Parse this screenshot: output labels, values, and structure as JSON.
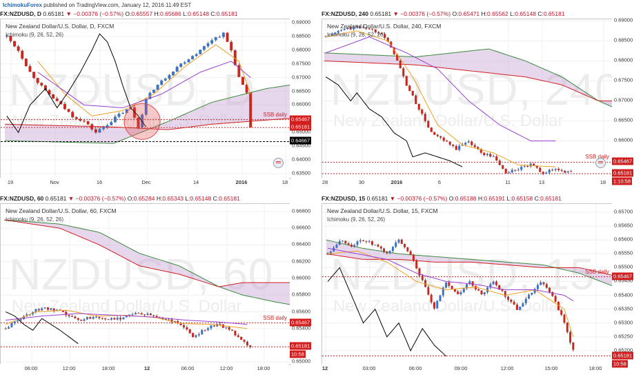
{
  "publish": {
    "author": "IchimokuForex",
    "text": "published on TradingView.com, January 12, 2016 11:49 EST"
  },
  "colors": {
    "up": "#3b73c9",
    "down": "#c8281e",
    "cloud": "#c8a6d6",
    "span_a": "#3a8a3a",
    "span_b": "#d01e1e",
    "tenkan": "#f0a020",
    "kijun": "#9b3fd0",
    "chikou": "#000000",
    "ssb": "#d21e1e"
  },
  "panels": [
    {
      "id": "daily",
      "header": {
        "symbol": "FX:NZDUSD, D",
        "price": "0.65181",
        "change": "▼ −0.00376 (−0.57%)",
        "o_label": "O:",
        "o": "0.65557",
        "h_label": "H:",
        "h": "0.65686",
        "l_label": "L:",
        "l": "0.65148",
        "c_label": "C:",
        "c": "0.65181"
      },
      "instrument": "New Zealand Dollar/U.S. Dollar, D, FXCM",
      "indicator": "Ichimoku (9, 26, 52, 26)",
      "watermark": "NZDUSD, D",
      "watermark_sub": "New Zealand Dollar/U.S. Dollar",
      "ssb_label": "SSB daily",
      "price_tags": [
        {
          "value": "0.65467",
          "style": "red"
        },
        {
          "value": "0.65181",
          "style": "red"
        },
        {
          "value": "0.64667",
          "style": "black"
        }
      ],
      "chart_data": {
        "type": "candlestick",
        "ylim": [
          0.6332,
          0.6913
        ],
        "y_ticks": [
          "0.69000",
          "0.68500",
          "0.68000",
          "0.67500",
          "0.67000",
          "0.66500",
          "0.66000",
          "0.65500",
          "0.65000",
          "0.64500",
          "0.64000",
          "0.63500"
        ],
        "x_ticks": [
          {
            "label": "19",
            "bold": false
          },
          {
            "label": "Nov",
            "bold": false
          },
          {
            "label": "16",
            "bold": false
          },
          {
            "label": "Dec",
            "bold": false
          },
          {
            "label": "14",
            "bold": false
          },
          {
            "label": "2016",
            "bold": true
          },
          {
            "label": "18",
            "bold": false
          }
        ],
        "levels": [
          0.65467,
          0.65181,
          0.64667
        ]
      }
    },
    {
      "id": "h4",
      "header": {
        "symbol": "FX:NZDUSD, 240",
        "price": "0.65181",
        "change": "▼ −0.00376 (−0.57%)",
        "o_label": "O:",
        "o": "0.65471",
        "h_label": "H:",
        "h": "0.65562",
        "l_label": "L:",
        "l": "0.65148",
        "c_label": "C:",
        "c": "0.65181"
      },
      "instrument": "New Zealand Dollar/U.S. Dollar, 240, FXCM",
      "indicator": "Ichimoku (9, 26, 52, 26)",
      "watermark": "NZDUSD, 240",
      "watermark_sub": "New Zealand Dollar/U.S. Dollar",
      "ssb_label": "SSB daily",
      "price_tags": [
        {
          "value": "0.65467",
          "style": "red"
        },
        {
          "value": "0.65181",
          "style": "red"
        },
        {
          "value": "1:10:58",
          "style": "timer"
        }
      ],
      "chart_data": {
        "type": "candlestick",
        "ylim": [
          0.6506,
          0.6904
        ],
        "y_ticks": [
          "0.69000",
          "0.68500",
          "0.68000",
          "0.67500",
          "0.67000",
          "0.66500",
          "0.66000"
        ],
        "x_ticks": [
          {
            "label": "28",
            "bold": false
          },
          {
            "label": "30",
            "bold": false
          },
          {
            "label": "2016",
            "bold": true
          },
          {
            "label": "6",
            "bold": false
          },
          {
            "label": "11",
            "bold": false
          },
          {
            "label": "13",
            "bold": false
          },
          {
            "label": "18",
            "bold": false
          }
        ],
        "levels": [
          0.65467,
          0.65181
        ]
      }
    },
    {
      "id": "h1",
      "header": {
        "symbol": "FX:NZDUSD, 60",
        "price": "0.65181",
        "change": "▼ −0.00376 (−0.57%)",
        "o_label": "O:",
        "o": "0.65284",
        "h_label": "H:",
        "h": "0.65343",
        "l_label": "L:",
        "l": "0.65148",
        "c_label": "C:",
        "c": "0.65181"
      },
      "instrument": "New Zealand Dollar/U.S. Dollar, 60, FXCM",
      "indicator": "Ichimoku (9, 26, 52, 26)",
      "watermark": "NZDUSD, 60",
      "watermark_sub": "New Zealand Dollar/U.S. Dollar",
      "ssb_label": "SSB daily",
      "price_tags": [
        {
          "value": "0.65467",
          "style": "red"
        },
        {
          "value": "0.65181",
          "style": "red"
        },
        {
          "value": "10:58",
          "style": "timer"
        }
      ],
      "chart_data": {
        "type": "candlestick",
        "ylim": [
          0.6497,
          0.6689
        ],
        "y_ticks": [
          "0.66800",
          "0.66600",
          "0.66400",
          "0.66200",
          "0.66000",
          "0.65800",
          "0.65600",
          "0.65400",
          "0.65200",
          "0.65000"
        ],
        "x_ticks": [
          {
            "label": "06:00",
            "bold": false
          },
          {
            "label": "12:00",
            "bold": false
          },
          {
            "label": "18:00",
            "bold": false
          },
          {
            "label": "12",
            "bold": true
          },
          {
            "label": "06:00",
            "bold": false
          },
          {
            "label": "12:00",
            "bold": false
          },
          {
            "label": "18:00",
            "bold": false
          }
        ],
        "levels": [
          0.65467,
          0.65181
        ]
      }
    },
    {
      "id": "m15",
      "header": {
        "symbol": "FX:NZDUSD, 15",
        "price": "0.65181",
        "change": "▼ −0.00376 (−0.57%)",
        "o_label": "O:",
        "o": "0.65188",
        "h_label": "H:",
        "h": "0.65191",
        "l_label": "L:",
        "l": "0.65158",
        "c_label": "C:",
        "c": "0.65181"
      },
      "instrument": "New Zealand Dollar/U.S. Dollar, 15, FXCM",
      "indicator": "Ichimoku (9, 26, 52, 26)",
      "watermark": "NZDUSD, 15",
      "watermark_sub": "New Zealand Dollar/U.S. Dollar",
      "ssb_label": "SSB daily",
      "price_tags": [
        {
          "value": "0.65467",
          "style": "red"
        },
        {
          "value": "0.65181",
          "style": "red"
        },
        {
          "value": "10:58",
          "style": "timer"
        }
      ],
      "chart_data": {
        "type": "candlestick",
        "ylim": [
          0.6515,
          0.6573
        ],
        "y_ticks": [
          "0.65700",
          "0.65650",
          "0.65600",
          "0.65550",
          "0.65500",
          "0.65450",
          "0.65400",
          "0.65350",
          "0.65300",
          "0.65250",
          "0.65200"
        ],
        "x_ticks": [
          {
            "label": "12",
            "bold": true
          },
          {
            "label": "03:00",
            "bold": false
          },
          {
            "label": "06:00",
            "bold": false
          },
          {
            "label": "09:00",
            "bold": false
          },
          {
            "label": "12:00",
            "bold": false
          },
          {
            "label": "15:00",
            "bold": false
          },
          {
            "label": "18:00",
            "bold": false
          }
        ],
        "levels": [
          0.65467,
          0.65181
        ]
      }
    }
  ]
}
